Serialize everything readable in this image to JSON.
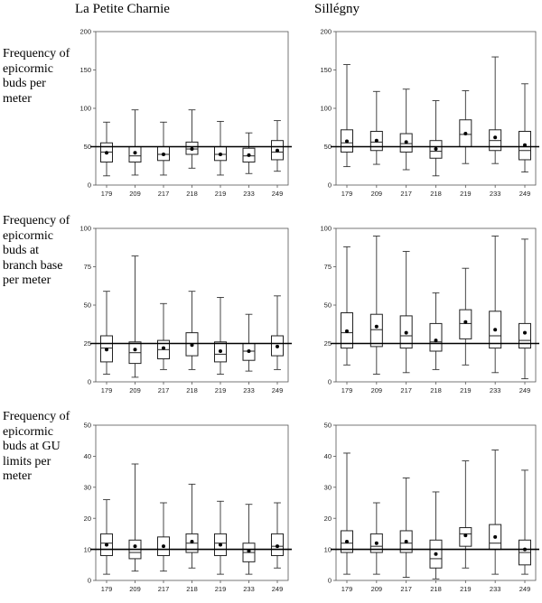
{
  "columns": [
    "La Petite Charnie",
    "Sillégny"
  ],
  "row_labels": [
    "Frequency of epicormic buds per meter",
    "Frequency of epicormic buds at branch base per meter",
    "Frequency of epicormic buds at GU limits per meter"
  ],
  "chart_data": [
    {
      "type": "box",
      "column": "La Petite Charnie",
      "row": "Frequency of epicormic buds per meter",
      "categories": [
        "179",
        "209",
        "217",
        "218",
        "219",
        "233",
        "249"
      ],
      "ylim": [
        0,
        200
      ],
      "yticks": [
        0,
        50,
        100,
        150,
        200
      ],
      "reference_line": 50,
      "boxes": [
        {
          "min": 12,
          "q1": 30,
          "median": 43,
          "q3": 55,
          "max": 82,
          "mean": 42
        },
        {
          "min": 13,
          "q1": 30,
          "median": 38,
          "q3": 50,
          "max": 98,
          "mean": 42
        },
        {
          "min": 13,
          "q1": 32,
          "median": 40,
          "q3": 50,
          "max": 82,
          "mean": 40
        },
        {
          "min": 22,
          "q1": 40,
          "median": 47,
          "q3": 56,
          "max": 98,
          "mean": 47
        },
        {
          "min": 13,
          "q1": 32,
          "median": 40,
          "q3": 50,
          "max": 83,
          "mean": 40
        },
        {
          "min": 15,
          "q1": 30,
          "median": 38,
          "q3": 48,
          "max": 68,
          "mean": 39
        },
        {
          "min": 18,
          "q1": 33,
          "median": 43,
          "q3": 58,
          "max": 84,
          "mean": 45
        }
      ]
    },
    {
      "type": "box",
      "column": "Sillégny",
      "row": "Frequency of epicormic buds per meter",
      "categories": [
        "179",
        "209",
        "217",
        "218",
        "219",
        "233",
        "249"
      ],
      "ylim": [
        0,
        200
      ],
      "yticks": [
        0,
        50,
        100,
        150,
        200
      ],
      "reference_line": 50,
      "boxes": [
        {
          "min": 24,
          "q1": 43,
          "median": 55,
          "q3": 72,
          "max": 157,
          "mean": 57
        },
        {
          "min": 27,
          "q1": 45,
          "median": 56,
          "q3": 70,
          "max": 122,
          "mean": 58
        },
        {
          "min": 20,
          "q1": 43,
          "median": 54,
          "q3": 67,
          "max": 125,
          "mean": 56
        },
        {
          "min": 12,
          "q1": 35,
          "median": 44,
          "q3": 58,
          "max": 110,
          "mean": 47
        },
        {
          "min": 28,
          "q1": 50,
          "median": 66,
          "q3": 85,
          "max": 123,
          "mean": 67
        },
        {
          "min": 28,
          "q1": 45,
          "median": 58,
          "q3": 72,
          "max": 167,
          "mean": 62
        },
        {
          "min": 17,
          "q1": 33,
          "median": 45,
          "q3": 70,
          "max": 132,
          "mean": 52
        }
      ]
    },
    {
      "type": "box",
      "column": "La Petite Charnie",
      "row": "Frequency of epicormic buds at branch base per meter",
      "categories": [
        "179",
        "209",
        "217",
        "218",
        "219",
        "233",
        "249"
      ],
      "ylim": [
        0,
        100
      ],
      "yticks": [
        0,
        25,
        50,
        75,
        100
      ],
      "reference_line": 25,
      "boxes": [
        {
          "min": 5,
          "q1": 13,
          "median": 22,
          "q3": 30,
          "max": 59,
          "mean": 21
        },
        {
          "min": 3,
          "q1": 12,
          "median": 19,
          "q3": 26,
          "max": 82,
          "mean": 21
        },
        {
          "min": 8,
          "q1": 15,
          "median": 21,
          "q3": 27,
          "max": 51,
          "mean": 22
        },
        {
          "min": 8,
          "q1": 17,
          "median": 25,
          "q3": 32,
          "max": 59,
          "mean": 24
        },
        {
          "min": 5,
          "q1": 13,
          "median": 18,
          "q3": 26,
          "max": 55,
          "mean": 20
        },
        {
          "min": 7,
          "q1": 14,
          "median": 20,
          "q3": 25,
          "max": 44,
          "mean": 20
        },
        {
          "min": 8,
          "q1": 17,
          "median": 25,
          "q3": 30,
          "max": 56,
          "mean": 23
        }
      ]
    },
    {
      "type": "box",
      "column": "Sillégny",
      "row": "Frequency of epicormic buds at branch base per meter",
      "categories": [
        "179",
        "209",
        "217",
        "218",
        "219",
        "233",
        "249"
      ],
      "ylim": [
        0,
        100
      ],
      "yticks": [
        0,
        25,
        50,
        75,
        100
      ],
      "reference_line": 25,
      "boxes": [
        {
          "min": 11,
          "q1": 22,
          "median": 32,
          "q3": 45,
          "max": 88,
          "mean": 33
        },
        {
          "min": 5,
          "q1": 23,
          "median": 34,
          "q3": 44,
          "max": 95,
          "mean": 36
        },
        {
          "min": 6,
          "q1": 22,
          "median": 30,
          "q3": 43,
          "max": 85,
          "mean": 32
        },
        {
          "min": 8,
          "q1": 20,
          "median": 26,
          "q3": 38,
          "max": 58,
          "mean": 27
        },
        {
          "min": 11,
          "q1": 28,
          "median": 38,
          "q3": 47,
          "max": 74,
          "mean": 39
        },
        {
          "min": 6,
          "q1": 22,
          "median": 30,
          "q3": 46,
          "max": 95,
          "mean": 34
        },
        {
          "min": 2,
          "q1": 22,
          "median": 27,
          "q3": 38,
          "max": 93,
          "mean": 32
        }
      ]
    },
    {
      "type": "box",
      "column": "La Petite Charnie",
      "row": "Frequency of epicormic buds at GU limits per meter",
      "categories": [
        "179",
        "209",
        "217",
        "218",
        "219",
        "233",
        "249"
      ],
      "ylim": [
        0,
        50
      ],
      "yticks": [
        0,
        10,
        20,
        30,
        40,
        50
      ],
      "reference_line": 10,
      "boxes": [
        {
          "min": 2,
          "q1": 8,
          "median": 12,
          "q3": 15,
          "max": 26,
          "mean": 11.5
        },
        {
          "min": 3,
          "q1": 7,
          "median": 9,
          "q3": 13,
          "max": 37.5,
          "mean": 11
        },
        {
          "min": 3,
          "q1": 8,
          "median": 10,
          "q3": 14,
          "max": 25,
          "mean": 11
        },
        {
          "min": 4,
          "q1": 9,
          "median": 12,
          "q3": 15,
          "max": 31,
          "mean": 12.5
        },
        {
          "min": 2,
          "q1": 8,
          "median": 12,
          "q3": 15,
          "max": 25.5,
          "mean": 11.5
        },
        {
          "min": 2,
          "q1": 6,
          "median": 9,
          "q3": 12,
          "max": 24.5,
          "mean": 9.5
        },
        {
          "min": 4,
          "q1": 8,
          "median": 11,
          "q3": 15,
          "max": 25,
          "mean": 11
        }
      ]
    },
    {
      "type": "box",
      "column": "Sillégny",
      "row": "Frequency of epicormic buds at GU limits per meter",
      "categories": [
        "179",
        "209",
        "217",
        "218",
        "219",
        "233",
        "249"
      ],
      "ylim": [
        0,
        50
      ],
      "yticks": [
        0,
        10,
        20,
        30,
        40,
        50
      ],
      "reference_line": 10,
      "boxes": [
        {
          "min": 2,
          "q1": 9,
          "median": 12,
          "q3": 16,
          "max": 41,
          "mean": 12.5
        },
        {
          "min": 2,
          "q1": 9,
          "median": 11,
          "q3": 15,
          "max": 25,
          "mean": 12
        },
        {
          "min": 1,
          "q1": 9,
          "median": 12,
          "q3": 16,
          "max": 33,
          "mean": 12.5
        },
        {
          "min": 0.5,
          "q1": 4,
          "median": 7,
          "q3": 13,
          "max": 28.5,
          "mean": 8.5
        },
        {
          "min": 4,
          "q1": 11,
          "median": 15,
          "q3": 17,
          "max": 38.5,
          "mean": 14.5
        },
        {
          "min": 2,
          "q1": 10,
          "median": 12,
          "q3": 18,
          "max": 42,
          "mean": 14
        },
        {
          "min": 2,
          "q1": 5,
          "median": 9,
          "q3": 13,
          "max": 35.5,
          "mean": 10
        }
      ]
    }
  ]
}
